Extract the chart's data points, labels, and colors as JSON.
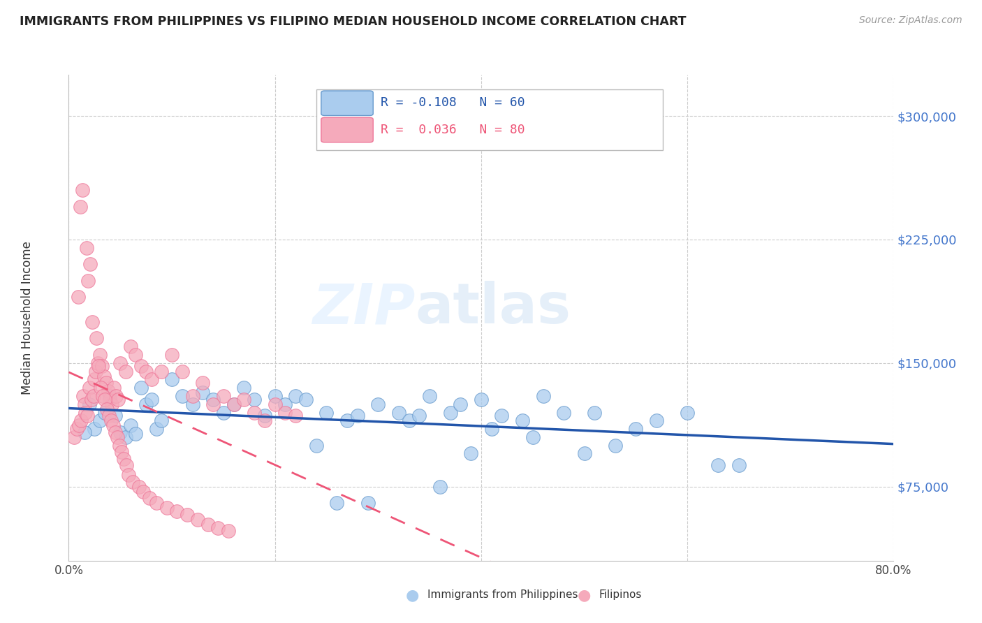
{
  "title": "IMMIGRANTS FROM PHILIPPINES VS FILIPINO MEDIAN HOUSEHOLD INCOME CORRELATION CHART",
  "source": "Source: ZipAtlas.com",
  "ylabel": "Median Household Income",
  "yticks": [
    75000,
    150000,
    225000,
    300000
  ],
  "xmin": 0.0,
  "xmax": 0.8,
  "ymin": 30000,
  "ymax": 325000,
  "watermark_part1": "ZIP",
  "watermark_part2": "atlas",
  "legend": [
    {
      "label": "Immigrants from Philippines",
      "R": -0.108,
      "N": 60,
      "color_face": "#aaccee",
      "color_edge": "#6699cc",
      "line_color": "#2255aa"
    },
    {
      "label": "Filipinos",
      "R": 0.036,
      "N": 80,
      "color_face": "#f5aabb",
      "color_edge": "#ee7799",
      "line_color": "#ee5577"
    }
  ],
  "blue_scatter_x": [
    0.02,
    0.025,
    0.03,
    0.035,
    0.04,
    0.045,
    0.05,
    0.055,
    0.06,
    0.065,
    0.07,
    0.075,
    0.08,
    0.085,
    0.09,
    0.1,
    0.11,
    0.12,
    0.13,
    0.14,
    0.15,
    0.16,
    0.17,
    0.18,
    0.19,
    0.2,
    0.21,
    0.22,
    0.23,
    0.25,
    0.27,
    0.28,
    0.3,
    0.32,
    0.33,
    0.34,
    0.35,
    0.37,
    0.38,
    0.4,
    0.42,
    0.44,
    0.46,
    0.48,
    0.5,
    0.51,
    0.53,
    0.55,
    0.57,
    0.6,
    0.63,
    0.65,
    0.45,
    0.41,
    0.39,
    0.36,
    0.29,
    0.26,
    0.24,
    0.015
  ],
  "blue_scatter_y": [
    125000,
    110000,
    115000,
    120000,
    130000,
    118000,
    108000,
    105000,
    112000,
    107000,
    135000,
    125000,
    128000,
    110000,
    115000,
    140000,
    130000,
    125000,
    132000,
    128000,
    120000,
    125000,
    135000,
    128000,
    118000,
    130000,
    125000,
    130000,
    128000,
    120000,
    115000,
    118000,
    125000,
    120000,
    115000,
    118000,
    130000,
    120000,
    125000,
    128000,
    118000,
    115000,
    130000,
    120000,
    95000,
    120000,
    100000,
    110000,
    115000,
    120000,
    88000,
    88000,
    105000,
    110000,
    95000,
    75000,
    65000,
    65000,
    100000,
    108000
  ],
  "pink_scatter_x": [
    0.005,
    0.008,
    0.01,
    0.012,
    0.014,
    0.015,
    0.016,
    0.018,
    0.02,
    0.022,
    0.024,
    0.025,
    0.026,
    0.028,
    0.03,
    0.032,
    0.034,
    0.036,
    0.038,
    0.04,
    0.042,
    0.044,
    0.046,
    0.048,
    0.05,
    0.055,
    0.06,
    0.065,
    0.07,
    0.075,
    0.08,
    0.09,
    0.1,
    0.11,
    0.12,
    0.13,
    0.14,
    0.15,
    0.16,
    0.17,
    0.18,
    0.19,
    0.2,
    0.21,
    0.22,
    0.009,
    0.011,
    0.013,
    0.017,
    0.019,
    0.021,
    0.023,
    0.027,
    0.029,
    0.031,
    0.033,
    0.035,
    0.037,
    0.039,
    0.041,
    0.043,
    0.045,
    0.047,
    0.049,
    0.051,
    0.053,
    0.056,
    0.058,
    0.062,
    0.068,
    0.072,
    0.078,
    0.085,
    0.095,
    0.105,
    0.115,
    0.125,
    0.135,
    0.145,
    0.155
  ],
  "pink_scatter_y": [
    105000,
    110000,
    112000,
    115000,
    130000,
    125000,
    120000,
    118000,
    135000,
    128000,
    130000,
    140000,
    145000,
    150000,
    155000,
    148000,
    142000,
    138000,
    133000,
    128000,
    125000,
    135000,
    130000,
    128000,
    150000,
    145000,
    160000,
    155000,
    148000,
    145000,
    140000,
    145000,
    155000,
    145000,
    130000,
    138000,
    125000,
    130000,
    125000,
    128000,
    120000,
    115000,
    125000,
    120000,
    118000,
    190000,
    245000,
    255000,
    220000,
    200000,
    210000,
    175000,
    165000,
    148000,
    135000,
    130000,
    128000,
    122000,
    118000,
    115000,
    112000,
    108000,
    105000,
    100000,
    96000,
    92000,
    88000,
    82000,
    78000,
    75000,
    72000,
    68000,
    65000,
    62000,
    60000,
    58000,
    55000,
    52000,
    50000,
    48000
  ]
}
